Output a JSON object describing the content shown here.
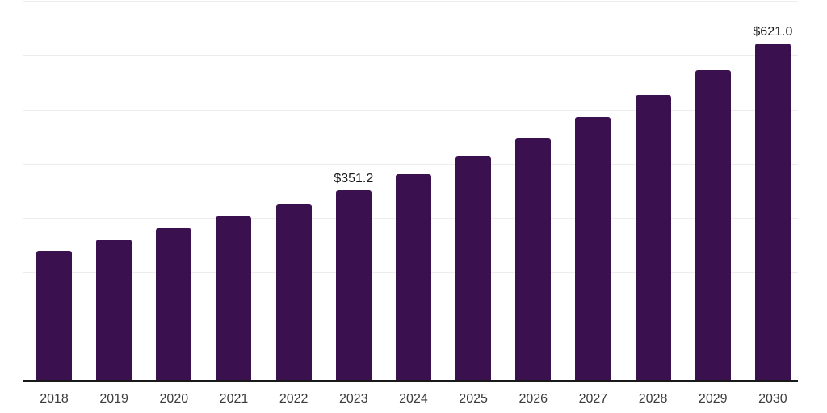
{
  "chart_data": {
    "type": "bar",
    "title": "",
    "xlabel": "",
    "ylabel": "",
    "categories": [
      "2018",
      "2019",
      "2020",
      "2021",
      "2022",
      "2023",
      "2024",
      "2025",
      "2026",
      "2027",
      "2028",
      "2029",
      "2030"
    ],
    "values": [
      239.0,
      259.9,
      281.0,
      303.8,
      325.5,
      351.2,
      381.2,
      413.5,
      447.0,
      486.2,
      526.2,
      572.1,
      621.0
    ],
    "value_labels": [
      "",
      "",
      "",
      "",
      "",
      "$351.2",
      "",
      "",
      "",
      "",
      "",
      "",
      "$621.0"
    ],
    "ylim": [
      0,
      700
    ],
    "gridline_step": 100,
    "grid": "horizontal",
    "legend": "none",
    "colors": {
      "bar": "#3A114E",
      "gridline": "#EDEDED",
      "axis_line": "#1A1A1A",
      "tick_label": "#3C3C3C",
      "value_label": "#1A1A1A",
      "background": "#FFFFFF"
    }
  }
}
